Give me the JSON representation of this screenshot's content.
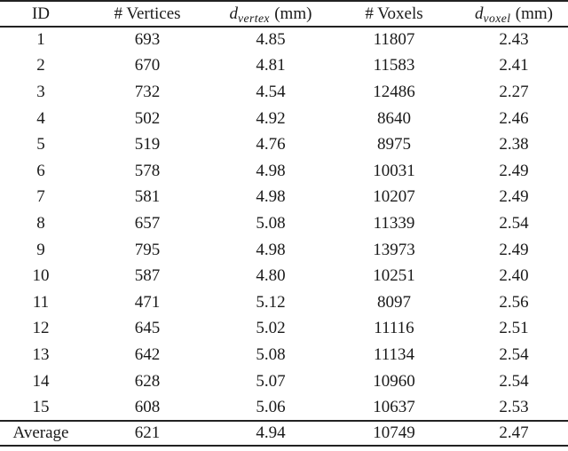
{
  "page": {
    "background": "#ffffff",
    "text_color": "#1a1a1a",
    "rule_color": "#222222"
  },
  "table": {
    "header": {
      "id": "ID",
      "vertices": "# Vertices",
      "d_vertex": {
        "symbol": "d",
        "subscript": "vertex",
        "unit": "(mm)"
      },
      "voxels": "# Voxels",
      "d_voxel": {
        "symbol": "d",
        "subscript": "voxel",
        "unit": "(mm)"
      }
    },
    "rows": [
      [
        "1",
        "693",
        "4.85",
        "11807",
        "2.43"
      ],
      [
        "2",
        "670",
        "4.81",
        "11583",
        "2.41"
      ],
      [
        "3",
        "732",
        "4.54",
        "12486",
        "2.27"
      ],
      [
        "4",
        "502",
        "4.92",
        "8640",
        "2.46"
      ],
      [
        "5",
        "519",
        "4.76",
        "8975",
        "2.38"
      ],
      [
        "6",
        "578",
        "4.98",
        "10031",
        "2.49"
      ],
      [
        "7",
        "581",
        "4.98",
        "10207",
        "2.49"
      ],
      [
        "8",
        "657",
        "5.08",
        "11339",
        "2.54"
      ],
      [
        "9",
        "795",
        "4.98",
        "13973",
        "2.49"
      ],
      [
        "10",
        "587",
        "4.80",
        "10251",
        "2.40"
      ],
      [
        "11",
        "471",
        "5.12",
        "8097",
        "2.56"
      ],
      [
        "12",
        "645",
        "5.02",
        "11116",
        "2.51"
      ],
      [
        "13",
        "642",
        "5.08",
        "11134",
        "2.54"
      ],
      [
        "14",
        "628",
        "5.07",
        "10960",
        "2.54"
      ],
      [
        "15",
        "608",
        "5.06",
        "10637",
        "2.53"
      ]
    ],
    "average_row": [
      "Average",
      "621",
      "4.94",
      "10749",
      "2.47"
    ]
  }
}
